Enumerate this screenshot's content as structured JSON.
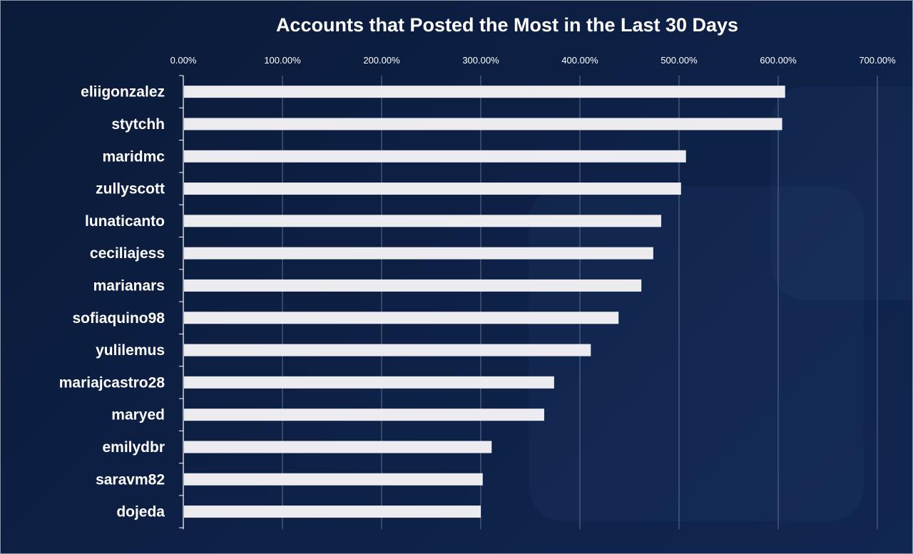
{
  "chart_data": {
    "type": "bar",
    "orientation": "horizontal",
    "title": "Accounts that Posted the Most in the Last 30 Days",
    "xlabel": "",
    "ylabel": "",
    "xlim": [
      0,
      700
    ],
    "tick_values": [
      0,
      100,
      200,
      300,
      400,
      500,
      600,
      700
    ],
    "tick_labels": [
      "0.00%",
      "100.00%",
      "200.00%",
      "300.00%",
      "400.00%",
      "500.00%",
      "600.00%",
      "700.00%"
    ],
    "categories": [
      "eliigonzalez",
      "stytchh",
      "maridmc",
      "zullyscott",
      "lunaticanto",
      "ceciliajess",
      "marianars",
      "sofiaquino98",
      "yulilemus",
      "mariajcastro28",
      "maryed",
      "emilydbr",
      "saravm82",
      "dojeda"
    ],
    "values": [
      607,
      604,
      507,
      502,
      482,
      474,
      462,
      439,
      411,
      374,
      364,
      311,
      302,
      300
    ],
    "unit": "%",
    "grid": true,
    "legend": "none",
    "axis_position": "top",
    "colors": {
      "background": "#0b1b3a",
      "bar": "#ececf0",
      "gridline": "#5d6f8f",
      "text": "#ffffff"
    }
  }
}
